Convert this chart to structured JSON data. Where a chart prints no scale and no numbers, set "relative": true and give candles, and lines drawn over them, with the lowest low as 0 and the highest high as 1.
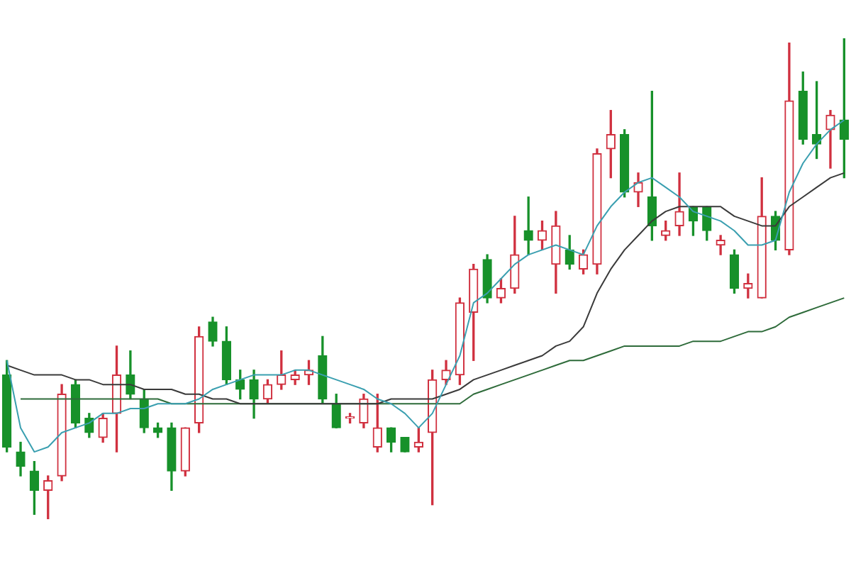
{
  "chart_data": {
    "type": "candlestick",
    "relative": true,
    "categories": [
      null,
      null,
      null,
      null,
      null,
      null,
      null,
      null,
      null,
      null,
      null,
      null,
      null,
      null,
      null,
      null,
      null,
      null,
      null,
      null,
      null,
      null,
      null,
      null,
      null,
      null,
      null,
      null,
      null,
      null,
      null,
      null,
      null,
      null,
      null,
      null,
      null,
      null,
      null,
      null,
      null,
      null,
      null,
      null,
      null,
      null,
      null,
      null,
      null,
      null,
      null,
      null,
      null,
      null,
      null,
      null,
      null,
      null,
      null,
      null,
      null,
      null
    ],
    "ohlc": [
      [
        0.3,
        0.33,
        0.14,
        0.15
      ],
      [
        0.14,
        0.16,
        0.09,
        0.11
      ],
      [
        0.1,
        0.12,
        0.01,
        0.06
      ],
      [
        0.06,
        0.09,
        0,
        0.08
      ],
      [
        0.09,
        0.28,
        0.08,
        0.26
      ],
      [
        0.28,
        0.29,
        0.19,
        0.2
      ],
      [
        0.21,
        0.22,
        0.17,
        0.18
      ],
      [
        0.17,
        0.22,
        0.16,
        0.21
      ],
      [
        0.22,
        0.36,
        0.14,
        0.3
      ],
      [
        0.3,
        0.35,
        0.25,
        0.26
      ],
      [
        0.25,
        0.27,
        0.18,
        0.19
      ],
      [
        0.19,
        0.2,
        0.17,
        0.18
      ],
      [
        0.19,
        0.2,
        0.06,
        0.1
      ],
      [
        0.1,
        0.19,
        0.09,
        0.19
      ],
      [
        0.2,
        0.4,
        0.18,
        0.38
      ],
      [
        0.41,
        0.42,
        0.36,
        0.37
      ],
      [
        0.37,
        0.4,
        0.28,
        0.29
      ],
      [
        0.29,
        0.31,
        0.25,
        0.27
      ],
      [
        0.29,
        0.31,
        0.21,
        0.25
      ],
      [
        0.25,
        0.29,
        0.24,
        0.28
      ],
      [
        0.28,
        0.35,
        0.27,
        0.3
      ],
      [
        0.29,
        0.31,
        0.28,
        0.3
      ],
      [
        0.3,
        0.33,
        0.28,
        0.31
      ],
      [
        0.34,
        0.38,
        0.24,
        0.25
      ],
      [
        0.24,
        0.26,
        0.19,
        0.19
      ],
      [
        0.21,
        0.22,
        0.2,
        0.21
      ],
      [
        0.2,
        0.26,
        0.19,
        0.25
      ],
      [
        0.15,
        0.26,
        0.14,
        0.19
      ],
      [
        0.19,
        0.19,
        0.14,
        0.16
      ],
      [
        0.17,
        0.17,
        0.14,
        0.14
      ],
      [
        0.15,
        0.19,
        0.14,
        0.16
      ],
      [
        0.18,
        0.31,
        0.03,
        0.29
      ],
      [
        0.29,
        0.33,
        0.28,
        0.31
      ],
      [
        0.3,
        0.46,
        0.28,
        0.45
      ],
      [
        0.43,
        0.53,
        0.33,
        0.52
      ],
      [
        0.54,
        0.55,
        0.45,
        0.46
      ],
      [
        0.46,
        0.5,
        0.45,
        0.48
      ],
      [
        0.48,
        0.63,
        0.47,
        0.55
      ],
      [
        0.6,
        0.67,
        0.55,
        0.58
      ],
      [
        0.58,
        0.62,
        0.56,
        0.6
      ],
      [
        0.53,
        0.64,
        0.47,
        0.61
      ],
      [
        0.56,
        0.59,
        0.52,
        0.53
      ],
      [
        0.52,
        0.56,
        0.51,
        0.55
      ],
      [
        0.53,
        0.77,
        0.51,
        0.76
      ],
      [
        0.77,
        0.85,
        0.71,
        0.8
      ],
      [
        0.8,
        0.81,
        0.67,
        0.68
      ],
      [
        0.68,
        0.72,
        0.65,
        0.7
      ],
      [
        0.67,
        0.89,
        0.58,
        0.61
      ],
      [
        0.59,
        0.62,
        0.58,
        0.6
      ],
      [
        0.61,
        0.72,
        0.59,
        0.64
      ],
      [
        0.65,
        0.65,
        0.59,
        0.62
      ],
      [
        0.65,
        0.65,
        0.58,
        0.6
      ],
      [
        0.57,
        0.59,
        0.55,
        0.58
      ],
      [
        0.55,
        0.56,
        0.47,
        0.48
      ],
      [
        0.48,
        0.51,
        0.46,
        0.49
      ],
      [
        0.46,
        0.71,
        0.46,
        0.63
      ],
      [
        0.63,
        0.64,
        0.56,
        0.58
      ],
      [
        0.56,
        0.99,
        0.55,
        0.87
      ],
      [
        0.89,
        0.93,
        0.78,
        0.79
      ],
      [
        0.8,
        0.91,
        0.75,
        0.78
      ],
      [
        0.81,
        0.85,
        0.73,
        0.84
      ],
      [
        0.83,
        1.0,
        0.71,
        0.79
      ]
    ],
    "series": [
      {
        "type": "line",
        "color": "#3a9fb0",
        "values": [
          0.33,
          0.19,
          0.14,
          0.15,
          0.18,
          0.19,
          0.2,
          0.22,
          0.22,
          0.23,
          0.23,
          0.24,
          0.24,
          0.24,
          0.25,
          0.27,
          0.28,
          0.29,
          0.3,
          0.3,
          0.3,
          0.31,
          0.31,
          0.3,
          0.29,
          0.28,
          0.27,
          0.25,
          0.24,
          0.22,
          0.19,
          0.22,
          0.28,
          0.34,
          0.45,
          0.47,
          0.5,
          0.53,
          0.55,
          0.56,
          0.57,
          0.56,
          0.55,
          0.61,
          0.65,
          0.68,
          0.7,
          0.71,
          0.69,
          0.67,
          0.64,
          0.63,
          0.62,
          0.6,
          0.57,
          0.57,
          0.58,
          0.68,
          0.74,
          0.78,
          0.81,
          0.83
        ]
      },
      {
        "type": "line",
        "color": "#3a3a3a",
        "values": [
          0.32,
          0.31,
          0.3,
          0.3,
          0.3,
          0.29,
          0.29,
          0.28,
          0.28,
          0.28,
          0.27,
          0.27,
          0.27,
          0.26,
          0.26,
          0.25,
          0.25,
          0.24,
          0.24,
          0.24,
          0.24,
          0.24,
          0.24,
          0.24,
          0.24,
          0.24,
          0.24,
          0.24,
          0.25,
          0.25,
          0.25,
          0.25,
          0.26,
          0.27,
          0.29,
          0.3,
          0.31,
          0.32,
          0.33,
          0.34,
          0.36,
          0.37,
          0.4,
          0.47,
          0.52,
          0.56,
          0.59,
          0.62,
          0.64,
          0.65,
          0.65,
          0.65,
          0.65,
          0.63,
          0.62,
          0.61,
          0.61,
          0.65,
          0.67,
          0.69,
          0.71,
          0.72
        ]
      },
      {
        "type": "line",
        "color": "#2e6b3a",
        "values": [
          null,
          0.25,
          0.25,
          0.25,
          0.25,
          0.25,
          0.25,
          0.25,
          0.25,
          0.25,
          0.25,
          0.25,
          0.24,
          0.24,
          0.24,
          0.24,
          0.24,
          0.24,
          0.24,
          0.24,
          0.24,
          0.24,
          0.24,
          0.24,
          0.24,
          0.24,
          0.24,
          0.24,
          0.24,
          0.24,
          0.24,
          0.24,
          0.24,
          0.24,
          0.26,
          0.27,
          0.28,
          0.29,
          0.3,
          0.31,
          0.32,
          0.33,
          0.33,
          0.34,
          0.35,
          0.36,
          0.36,
          0.36,
          0.36,
          0.36,
          0.37,
          0.37,
          0.37,
          0.38,
          0.39,
          0.39,
          0.4,
          0.42,
          0.43,
          0.44,
          0.45,
          0.46
        ]
      }
    ]
  }
}
